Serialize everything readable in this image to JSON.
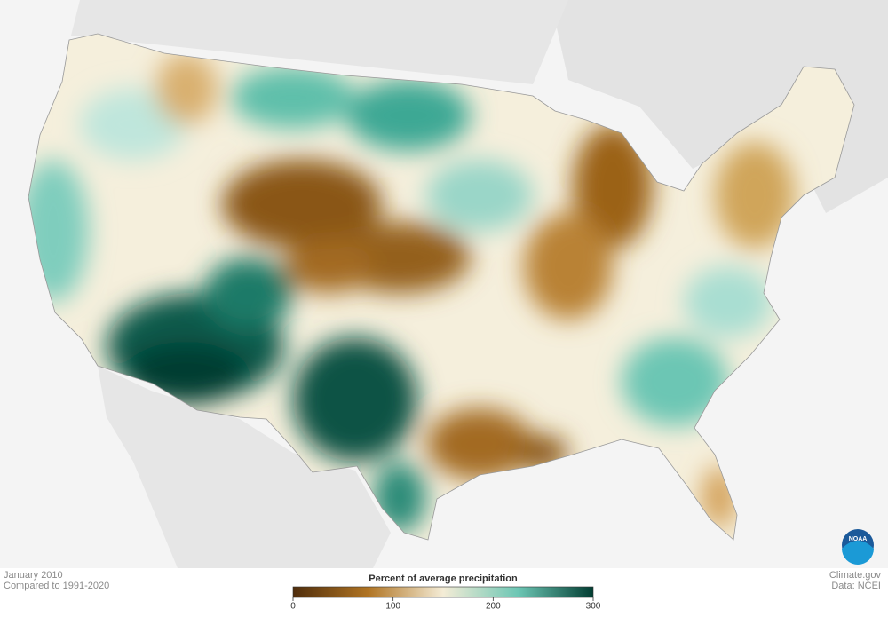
{
  "header": {
    "date": "January 2010",
    "baseline": "Compared to 1991-2020"
  },
  "credits": {
    "site": "Climate.gov",
    "source": "Data: NCEI",
    "logo": "NOAA"
  },
  "legend": {
    "title": "Percent of average precipitation",
    "range": [
      0,
      300
    ],
    "ticks": [
      0,
      100,
      200,
      300
    ],
    "colors": [
      "#4f2d0c",
      "#b07423",
      "#f4ecd6",
      "#6cc6b4",
      "#023d32"
    ]
  }
}
